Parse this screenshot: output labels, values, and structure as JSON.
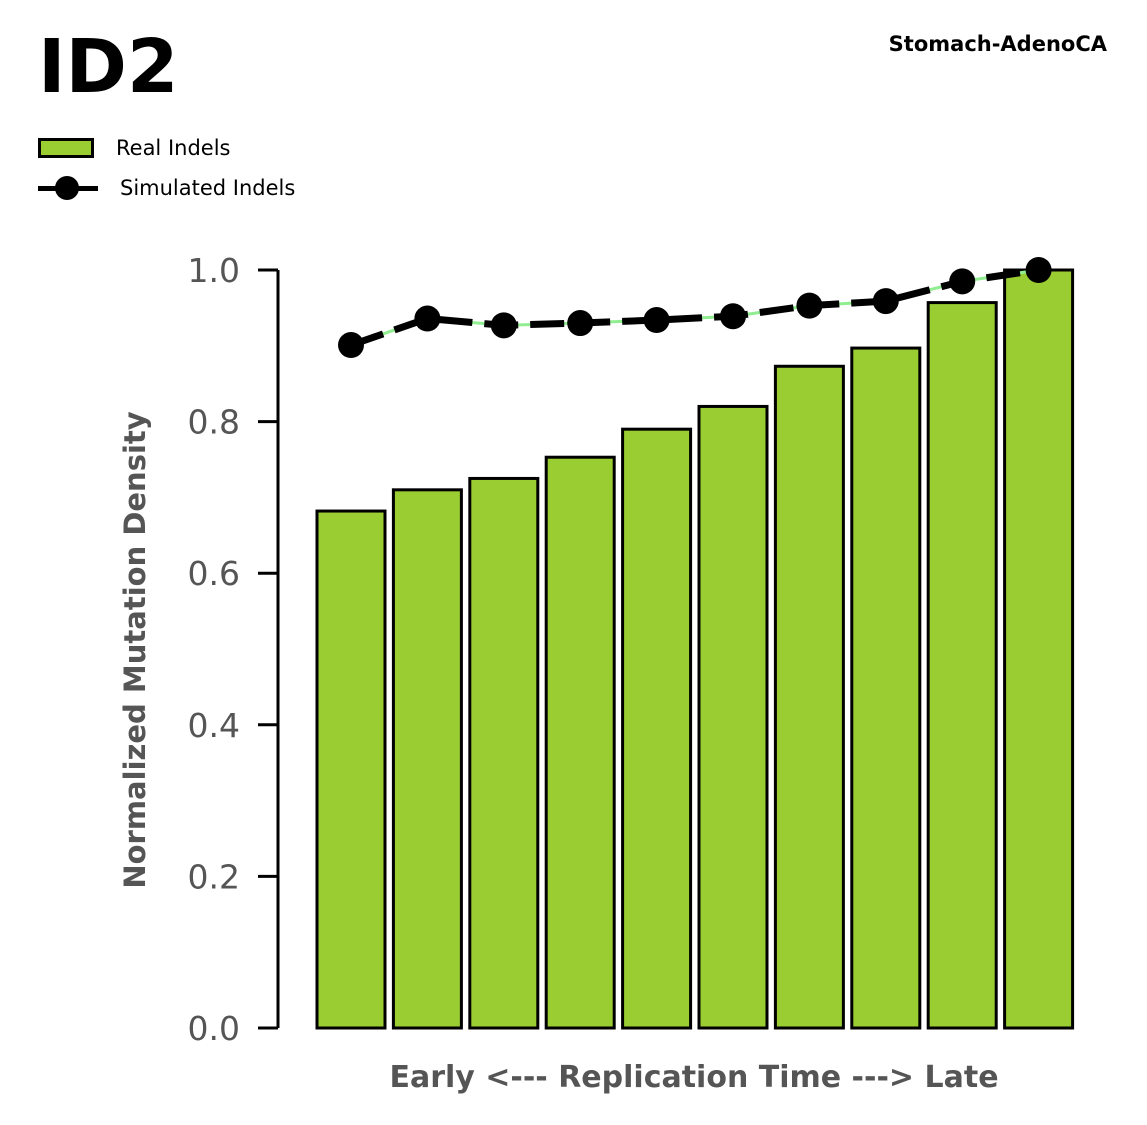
{
  "header": {
    "title": "ID2",
    "subtitle": "Stomach-AdenoCA"
  },
  "legend": {
    "items": [
      {
        "label": "Real Indels",
        "kind": "bar"
      },
      {
        "label": "Simulated Indels",
        "kind": "line"
      }
    ]
  },
  "colors": {
    "bar_fill": "#9ACD32",
    "bar_edge": "#000000",
    "sim_line": "#000000",
    "sim_thin_line": "#90EE90",
    "axis_text": "#555555"
  },
  "chart_data": {
    "type": "bar",
    "xlabel": "Early <--- Replication Time ---> Late",
    "ylabel": "Normalized Mutation Density",
    "ylim": [
      0,
      1.0
    ],
    "yticks": [
      "0.0",
      "0.2",
      "0.4",
      "0.6",
      "0.8",
      "1.0"
    ],
    "grid": false,
    "legend_position": "top-left",
    "series": [
      {
        "name": "Real Indels",
        "type": "bar",
        "values": [
          0.682,
          0.71,
          0.725,
          0.753,
          0.79,
          0.82,
          0.873,
          0.897,
          0.957,
          1.0
        ]
      },
      {
        "name": "Simulated Indels",
        "type": "line",
        "values": [
          0.901,
          0.936,
          0.927,
          0.93,
          0.934,
          0.939,
          0.953,
          0.959,
          0.985,
          1.0
        ]
      }
    ]
  }
}
